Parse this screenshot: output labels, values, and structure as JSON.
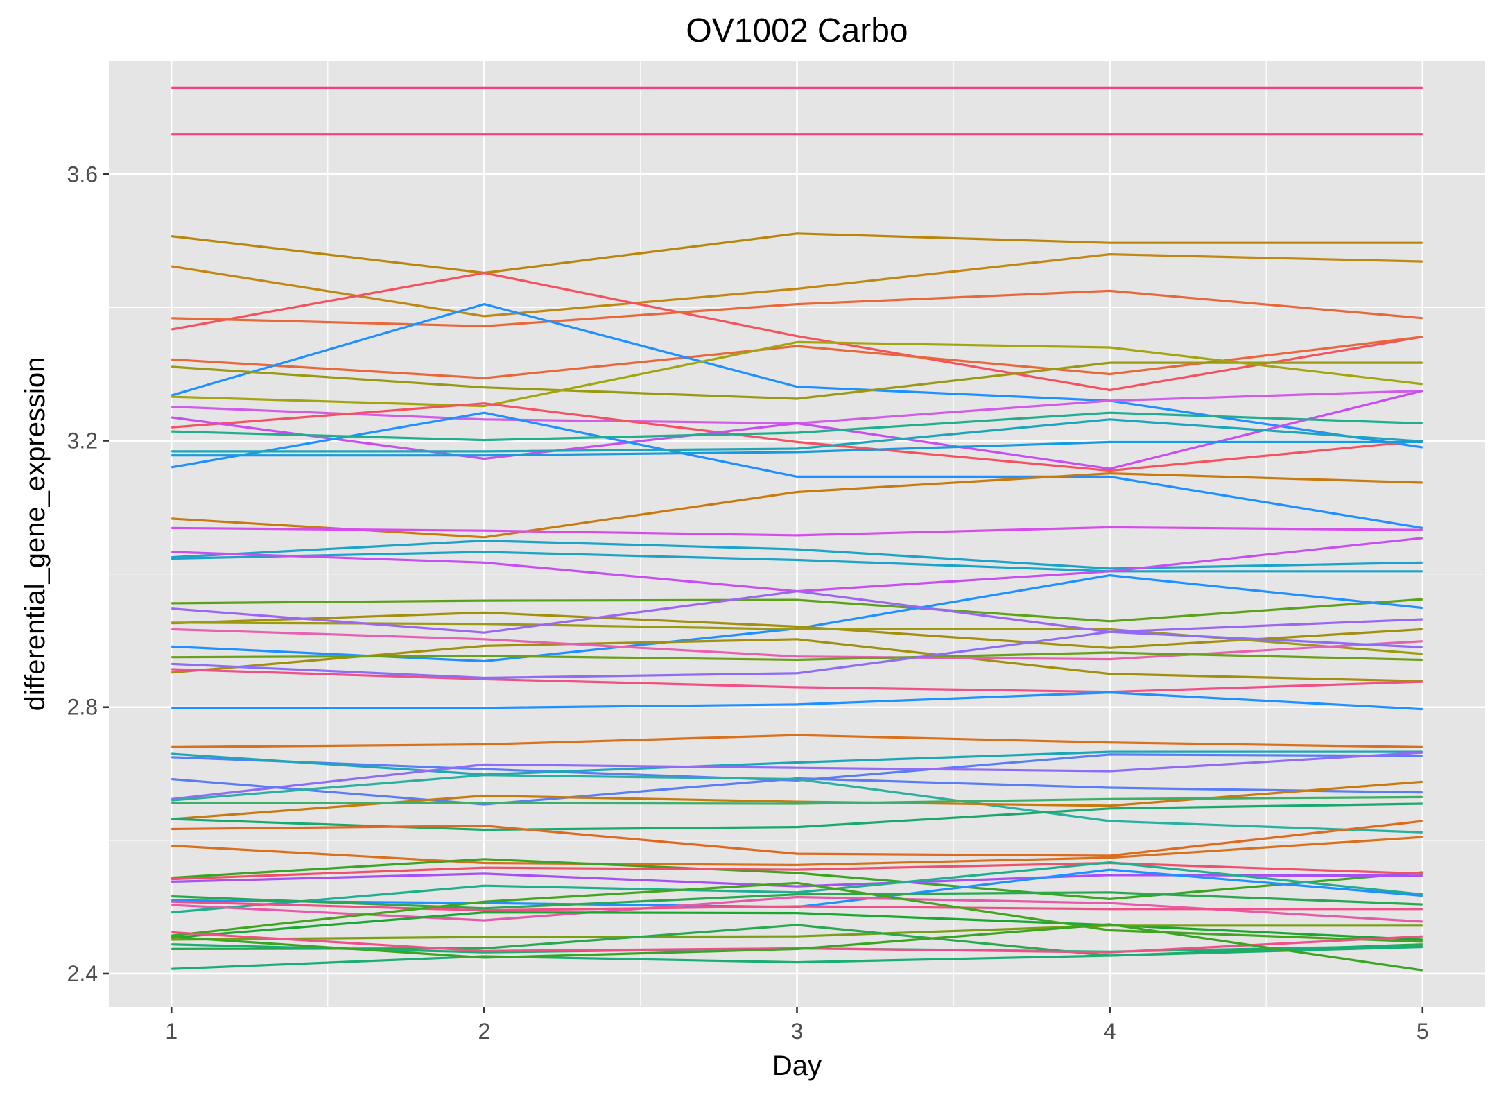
{
  "chart_data": {
    "type": "line",
    "title": "OV1002 Carbo",
    "xlabel": "Day",
    "ylabel": "differential_gene_expression",
    "x": [
      1,
      2,
      3,
      4,
      5
    ],
    "x_ticks": [
      "1",
      "2",
      "3",
      "4",
      "5"
    ],
    "y_ticks": [
      "2.4",
      "2.8",
      "3.2",
      "3.6"
    ],
    "xlim": [
      0.8,
      5.2
    ],
    "ylim": [
      2.35,
      3.77
    ],
    "grid": true,
    "legend": "none",
    "panel_background": "#e5e5e5",
    "series": [
      {
        "color": "#f8407f",
        "values": [
          3.73,
          3.73,
          3.73,
          3.73,
          3.73
        ]
      },
      {
        "color": "#f8407f",
        "values": [
          3.66,
          3.66,
          3.66,
          3.66,
          3.66
        ]
      },
      {
        "color": "#b8860b",
        "values": [
          3.507,
          3.452,
          3.511,
          3.497,
          3.497
        ]
      },
      {
        "color": "#c08712",
        "values": [
          3.462,
          3.387,
          3.428,
          3.48,
          3.469
        ]
      },
      {
        "color": "#f4525f",
        "values": [
          3.367,
          3.452,
          3.357,
          3.276,
          3.356
        ]
      },
      {
        "color": "#e8683c",
        "values": [
          3.384,
          3.372,
          3.405,
          3.425,
          3.384
        ]
      },
      {
        "color": "#e8683c",
        "values": [
          3.322,
          3.294,
          3.342,
          3.3,
          3.356
        ]
      },
      {
        "color": "#1e90ff",
        "values": [
          3.268,
          3.405,
          3.281,
          3.26,
          3.19
        ]
      },
      {
        "color": "#999915",
        "values": [
          3.311,
          3.28,
          3.263,
          3.317,
          3.317
        ]
      },
      {
        "color": "#a3a50f",
        "values": [
          3.266,
          3.252,
          3.348,
          3.34,
          3.285
        ]
      },
      {
        "color": "#d15ce8",
        "values": [
          3.251,
          3.232,
          3.226,
          3.26,
          3.275
        ]
      },
      {
        "color": "#f4525f",
        "values": [
          3.22,
          3.256,
          3.198,
          3.155,
          3.2
        ]
      },
      {
        "color": "#c84ef0",
        "values": [
          3.235,
          3.173,
          3.226,
          3.158,
          3.275
        ]
      },
      {
        "color": "#1e90ff",
        "values": [
          3.16,
          3.242,
          3.146,
          3.146,
          3.069
        ]
      },
      {
        "color": "#20ae8f",
        "values": [
          3.214,
          3.201,
          3.212,
          3.242,
          3.226
        ]
      },
      {
        "color": "#1ca6b7",
        "values": [
          3.184,
          3.184,
          3.188,
          3.232,
          3.199
        ]
      },
      {
        "color": "#1a9ade",
        "values": [
          3.178,
          3.178,
          3.183,
          3.198,
          3.198
        ]
      },
      {
        "color": "#c87a0e",
        "values": [
          3.083,
          3.055,
          3.123,
          3.151,
          3.137
        ]
      },
      {
        "color": "#d64eea",
        "values": [
          3.069,
          3.065,
          3.058,
          3.07,
          3.066
        ]
      },
      {
        "color": "#1ca3c7",
        "values": [
          3.025,
          3.05,
          3.037,
          3.008,
          3.017
        ]
      },
      {
        "color": "#1ca3c7",
        "values": [
          3.023,
          3.033,
          3.021,
          3.004,
          3.004
        ]
      },
      {
        "color": "#c84ef0",
        "values": [
          3.033,
          3.017,
          2.974,
          3.004,
          3.054
        ]
      },
      {
        "color": "#5da11b",
        "values": [
          2.956,
          2.96,
          2.961,
          2.929,
          2.962
        ]
      },
      {
        "color": "#1e90ff",
        "values": [
          2.891,
          2.869,
          2.918,
          2.998,
          2.949
        ]
      },
      {
        "color": "#a38f0e",
        "values": [
          2.926,
          2.942,
          2.921,
          2.889,
          2.917
        ]
      },
      {
        "color": "#9b9a12",
        "values": [
          2.927,
          2.925,
          2.917,
          2.917,
          2.88
        ]
      },
      {
        "color": "#9d66f2",
        "values": [
          2.948,
          2.912,
          2.974,
          2.913,
          2.932
        ]
      },
      {
        "color": "#a38f0e",
        "values": [
          2.852,
          2.892,
          2.902,
          2.85,
          2.839
        ]
      },
      {
        "color": "#e860b0",
        "values": [
          2.917,
          2.902,
          2.876,
          2.872,
          2.899
        ]
      },
      {
        "color": "#6aa01b",
        "values": [
          2.875,
          2.877,
          2.871,
          2.882,
          2.871
        ]
      },
      {
        "color": "#f05088",
        "values": [
          2.857,
          2.842,
          2.83,
          2.823,
          2.838
        ]
      },
      {
        "color": "#8f6cf5",
        "values": [
          2.865,
          2.844,
          2.851,
          2.913,
          2.89
        ]
      },
      {
        "color": "#1e90ff",
        "values": [
          2.799,
          2.799,
          2.804,
          2.822,
          2.797
        ]
      },
      {
        "color": "#d9701c",
        "values": [
          2.74,
          2.744,
          2.758,
          2.747,
          2.74
        ]
      },
      {
        "color": "#5a7df5",
        "values": [
          2.725,
          2.707,
          2.69,
          2.729,
          2.727
        ]
      },
      {
        "color": "#1ca6b7",
        "values": [
          2.73,
          2.699,
          2.717,
          2.733,
          2.733
        ]
      },
      {
        "color": "#8f6cf5",
        "values": [
          2.662,
          2.714,
          2.709,
          2.704,
          2.732
        ]
      },
      {
        "color": "#5a7df5",
        "values": [
          2.692,
          2.654,
          2.693,
          2.679,
          2.672
        ]
      },
      {
        "color": "#2ab0a0",
        "values": [
          2.66,
          2.698,
          2.692,
          2.629,
          2.612
        ]
      },
      {
        "color": "#c87a0e",
        "values": [
          2.632,
          2.667,
          2.658,
          2.652,
          2.688
        ]
      },
      {
        "color": "#3cb066",
        "values": [
          2.656,
          2.656,
          2.655,
          2.662,
          2.665
        ]
      },
      {
        "color": "#1aa86e",
        "values": [
          2.632,
          2.616,
          2.62,
          2.648,
          2.655
        ]
      },
      {
        "color": "#dd6a1f",
        "values": [
          2.617,
          2.622,
          2.58,
          2.577,
          2.629
        ]
      },
      {
        "color": "#d9701c",
        "values": [
          2.592,
          2.566,
          2.563,
          2.574,
          2.605
        ]
      },
      {
        "color": "#3aa522",
        "values": [
          2.544,
          2.572,
          2.551,
          2.512,
          2.552
        ]
      },
      {
        "color": "#a650f5",
        "values": [
          2.538,
          2.55,
          2.531,
          2.548,
          2.547
        ]
      },
      {
        "color": "#f0506a",
        "values": [
          2.542,
          2.559,
          2.556,
          2.566,
          2.55
        ]
      },
      {
        "color": "#20ae8f",
        "values": [
          2.492,
          2.532,
          2.522,
          2.567,
          2.519
        ]
      },
      {
        "color": "#1e90ff",
        "values": [
          2.51,
          2.506,
          2.5,
          2.556,
          2.517
        ]
      },
      {
        "color": "#2aa84f",
        "values": [
          2.516,
          2.498,
          2.519,
          2.522,
          2.504
        ]
      },
      {
        "color": "#e75aa9",
        "values": [
          2.503,
          2.48,
          2.515,
          2.506,
          2.478
        ]
      },
      {
        "color": "#f05088",
        "values": [
          2.508,
          2.495,
          2.501,
          2.497,
          2.497
        ]
      },
      {
        "color": "#1aa830",
        "values": [
          2.454,
          2.492,
          2.491,
          2.473,
          2.451
        ]
      },
      {
        "color": "#41a61d",
        "values": [
          2.457,
          2.508,
          2.536,
          2.465,
          2.448
        ]
      },
      {
        "color": "#7a9f16",
        "values": [
          2.451,
          2.455,
          2.456,
          2.472,
          2.472
        ]
      },
      {
        "color": "#2aa84f",
        "values": [
          2.437,
          2.438,
          2.473,
          2.427,
          2.444
        ]
      },
      {
        "color": "#1aad74",
        "values": [
          2.444,
          2.432,
          2.438,
          2.433,
          2.442
        ]
      },
      {
        "color": "#f05088",
        "values": [
          2.462,
          2.434,
          2.438,
          2.432,
          2.456
        ]
      },
      {
        "color": "#1aad74",
        "values": [
          2.407,
          2.426,
          2.417,
          2.427,
          2.44
        ]
      },
      {
        "color": "#3aa522",
        "values": [
          2.455,
          2.424,
          2.437,
          2.474,
          2.405
        ]
      }
    ]
  }
}
